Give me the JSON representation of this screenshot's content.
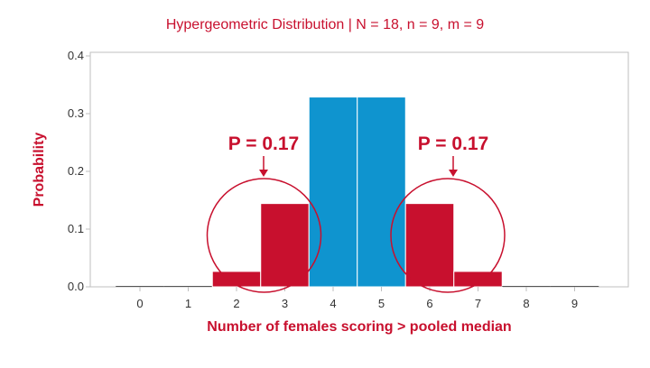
{
  "chart_data": {
    "type": "bar",
    "title": "Hypergeometric Distribution | N = 18, n = 9, m = 9",
    "xlabel": "Number of females scoring > pooled median",
    "ylabel": "Probability",
    "categories": [
      "0",
      "1",
      "2",
      "3",
      "4",
      "5",
      "6",
      "7",
      "8",
      "9"
    ],
    "values": [
      0.0,
      0.0002,
      0.0267,
      0.1443,
      0.3288,
      0.3288,
      0.1443,
      0.0267,
      0.0002,
      0.0
    ],
    "bar_colors": [
      "#c8102e",
      "#c8102e",
      "#c8102e",
      "#c8102e",
      "#0f94cf",
      "#0f94cf",
      "#c8102e",
      "#c8102e",
      "#c8102e",
      "#c8102e"
    ],
    "ylim": [
      0,
      0.4
    ],
    "yticks": [
      "0.0",
      "0.1",
      "0.2",
      "0.3",
      "0.4"
    ],
    "grid": false,
    "annotations": [
      {
        "text": "P = 0.17",
        "target_category": "3"
      },
      {
        "text": "P = 0.17",
        "target_category": "6"
      }
    ]
  },
  "colors": {
    "accent": "#c8102e",
    "highlight": "#0f94cf",
    "axis": "#bfbfbf"
  }
}
